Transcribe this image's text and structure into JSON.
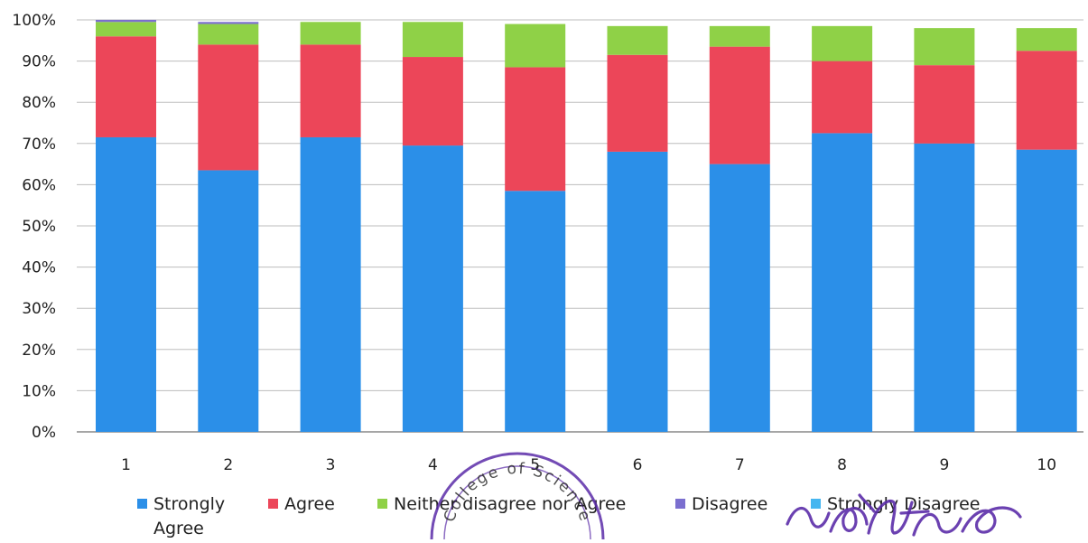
{
  "chart_data": {
    "type": "bar",
    "stacked": true,
    "categories": [
      "1",
      "2",
      "3",
      "4",
      "5",
      "6",
      "7",
      "8",
      "9",
      "10"
    ],
    "ylim": [
      0,
      100
    ],
    "yticks": [
      "0%",
      "10%",
      "20%",
      "30%",
      "40%",
      "50%",
      "60%",
      "70%",
      "80%",
      "90%",
      "100%"
    ],
    "grid": true,
    "legend_position": "bottom",
    "series": [
      {
        "name": "Strongly Agree",
        "color": "#2b8fe8",
        "values": [
          71.5,
          63.5,
          71.5,
          69.5,
          58.5,
          68,
          65,
          72.5,
          70,
          68.5
        ]
      },
      {
        "name": "Agree",
        "color": "#ec4659",
        "values": [
          24.5,
          30.5,
          22.5,
          21.5,
          30,
          23.5,
          28.5,
          17.5,
          19,
          24
        ]
      },
      {
        "name": "Neither disagree nor Agree",
        "color": "#8fd147",
        "values": [
          3.5,
          5,
          5.5,
          8.5,
          10.5,
          7,
          5,
          8.5,
          9,
          5.5
        ]
      },
      {
        "name": "Disagree",
        "color": "#7b6fcf",
        "values": [
          0.5,
          0.5,
          0,
          0,
          0,
          0,
          0,
          0,
          0,
          0
        ]
      },
      {
        "name": "Strongly Disagree",
        "color": "#46b6f0",
        "values": [
          0,
          0,
          0,
          0,
          0,
          0,
          0,
          0,
          0,
          0
        ]
      }
    ]
  },
  "legend": {
    "items": [
      "Strongly Agree",
      "Agree",
      "Neither disagree nor Agree",
      "Disagree",
      "Strongly Disagree"
    ]
  },
  "colors": {
    "grid": "#bdbdbd",
    "axis": "#888888",
    "stamp": "#5b2ca8"
  },
  "overlays": {
    "stamp_text": "College of Science",
    "signature_text": "Upadhyay"
  }
}
